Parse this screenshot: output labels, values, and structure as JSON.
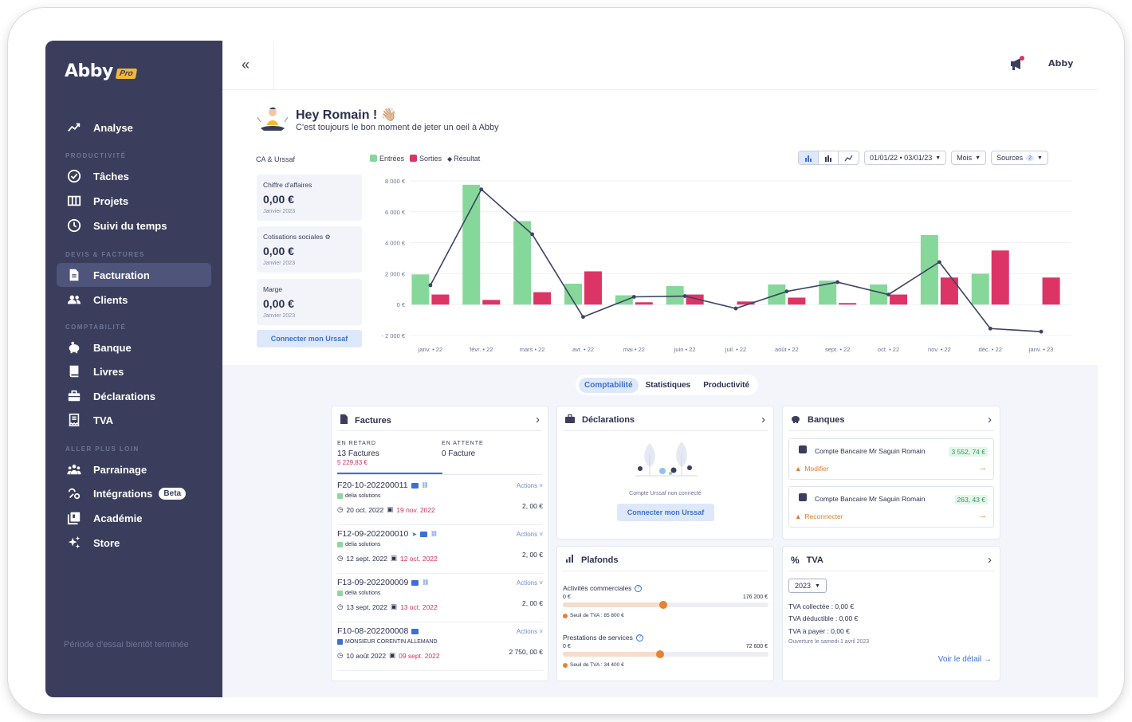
{
  "app": {
    "name": "Abby",
    "badge": "Pro"
  },
  "sidebar": {
    "sections": {
      "productivite": "PRODUCTIVITÉ",
      "devis": "DEVIS & FACTURES",
      "compta": "COMPTABILITÉ",
      "plus": "ALLER PLUS LOIN"
    },
    "items": [
      {
        "label": "Analyse",
        "icon": "analytics-icon"
      },
      {
        "label": "Tâches",
        "icon": "check-circle-icon"
      },
      {
        "label": "Projets",
        "icon": "columns-icon"
      },
      {
        "label": "Suivi du temps",
        "icon": "clock-icon"
      },
      {
        "label": "Facturation",
        "icon": "invoice-icon"
      },
      {
        "label": "Clients",
        "icon": "users-icon"
      },
      {
        "label": "Banque",
        "icon": "piggy-bank-icon"
      },
      {
        "label": "Livres",
        "icon": "book-icon"
      },
      {
        "label": "Déclarations",
        "icon": "briefcase-icon"
      },
      {
        "label": "TVA",
        "icon": "receipt-icon"
      },
      {
        "label": "Parrainage",
        "icon": "referral-icon"
      },
      {
        "label": "Intégrations",
        "icon": "integrations-icon",
        "badge": "Beta"
      },
      {
        "label": "Académie",
        "icon": "academy-icon"
      },
      {
        "label": "Store",
        "icon": "sparkles-icon"
      }
    ],
    "trial": "Période d'essai bientôt terminée"
  },
  "topbar": {
    "collapse": "«",
    "logo": "Abby"
  },
  "greeting": {
    "title": "Hey Romain ! 👋🏼",
    "subtitle": "C'est toujours le bon moment de jeter un oeil à Abby"
  },
  "kpis": {
    "section_label": "CA & Urssaf",
    "items": [
      {
        "label": "Chiffre d'affaires",
        "value": "0,00 €",
        "period": "Janvier 2023"
      },
      {
        "label": "Cotisations sociales",
        "value": "0,00 €",
        "period": "Janvier 2023"
      },
      {
        "label": "Marge",
        "value": "0,00 €",
        "period": "Janvier 2023"
      }
    ],
    "button": "Connecter mon Urssaf"
  },
  "controls": {
    "date_range": "01/01/22 • 03/01/23",
    "granularity": "Mois",
    "sources": "Sources",
    "sources_count": "2"
  },
  "chart_data": {
    "type": "bar",
    "categories": [
      "janv. • 22",
      "févr. • 22",
      "mars • 22",
      "avr. • 22",
      "mai • 22",
      "juin • 22",
      "juil. • 22",
      "août • 22",
      "sept. • 22",
      "oct. • 22",
      "nov. • 22",
      "déc. • 22",
      "janv. • 23"
    ],
    "series": [
      {
        "name": "Entrées",
        "kind": "bar",
        "color": "#86d89a",
        "values": [
          1950,
          7750,
          5400,
          1350,
          600,
          1200,
          0,
          1300,
          1550,
          1300,
          4500,
          2000,
          0
        ]
      },
      {
        "name": "Sorties",
        "kind": "bar",
        "color": "#dc3465",
        "values": [
          650,
          300,
          800,
          2150,
          150,
          650,
          200,
          450,
          100,
          650,
          1750,
          3500,
          1750
        ]
      },
      {
        "name": "Résultat",
        "kind": "line",
        "color": "#3d4364",
        "values": [
          1250,
          7450,
          4550,
          -800,
          500,
          550,
          -250,
          850,
          1450,
          650,
          2750,
          -1550,
          -1750
        ]
      }
    ],
    "yticks": [
      "8 000 €",
      "6 000 €",
      "4 000 €",
      "2 000 €",
      "0 €",
      "- 2 000 €"
    ],
    "ylim": [
      -2000,
      8000
    ]
  },
  "tabs": [
    "Comptabilité",
    "Statistiques",
    "Productivité"
  ],
  "factures": {
    "title": "Factures",
    "late_label": "EN RETARD",
    "late_count": "13 Factures",
    "late_amount": "5 229,83 €",
    "pending_label": "EN ATTENTE",
    "pending_count": "0 Facture",
    "actions_label": "Actions",
    "items": [
      {
        "ref": "F20-10-202200011",
        "client": "delia solutions",
        "date": "20 oct. 2022",
        "due": "19 nov. 2022",
        "amount": "2, 00 €"
      },
      {
        "ref": "F12-09-202200010",
        "client": "delia solutions",
        "date": "12 sept. 2022",
        "due": "12 oct. 2022",
        "amount": "2, 00 €"
      },
      {
        "ref": "F13-09-202200009",
        "client": "delia solutions",
        "date": "13 sept. 2022",
        "due": "13 oct. 2022",
        "amount": "2, 00 €"
      },
      {
        "ref": "F10-08-202200008",
        "client": "MONSIEUR CORENTIN ALLEMAND",
        "date": "10 août 2022",
        "due": "09 sept. 2022",
        "amount": "2 750, 00 €"
      }
    ]
  },
  "declarations": {
    "title": "Déclarations",
    "text": "Compte Urssaf non connecté",
    "button": "Connecter mon Urssaf"
  },
  "banques": {
    "title": "Banques",
    "items": [
      {
        "name": "Compte Bancaire Mr Saguin Romain",
        "amount": "3 552, 74 €",
        "action": "Modifier"
      },
      {
        "name": "Compte Bancaire Mr Saguin Romain",
        "amount": "263, 43 €",
        "action": "Reconnecter"
      }
    ]
  },
  "plafonds": {
    "title": "Plafonds",
    "items": [
      {
        "label": "Activités commerciales",
        "min": "0 €",
        "max": "176 200 €",
        "seuil": "Seuil de TVA : 85 800 €",
        "fraction": 0.487
      },
      {
        "label": "Prestations de services",
        "min": "0 €",
        "max": "72 600 €",
        "seuil": "Seuil de TVA : 34 400 €",
        "fraction": 0.474
      }
    ]
  },
  "tva": {
    "title": "TVA",
    "year": "2023",
    "collectee": "TVA collectée : 0,00 €",
    "deductible": "TVA déductible : 0,00 €",
    "a_payer": "TVA à payer : 0,00 €",
    "note": "Ouverture le samedi 1 avril 2023",
    "link": "Voir le détail →"
  }
}
